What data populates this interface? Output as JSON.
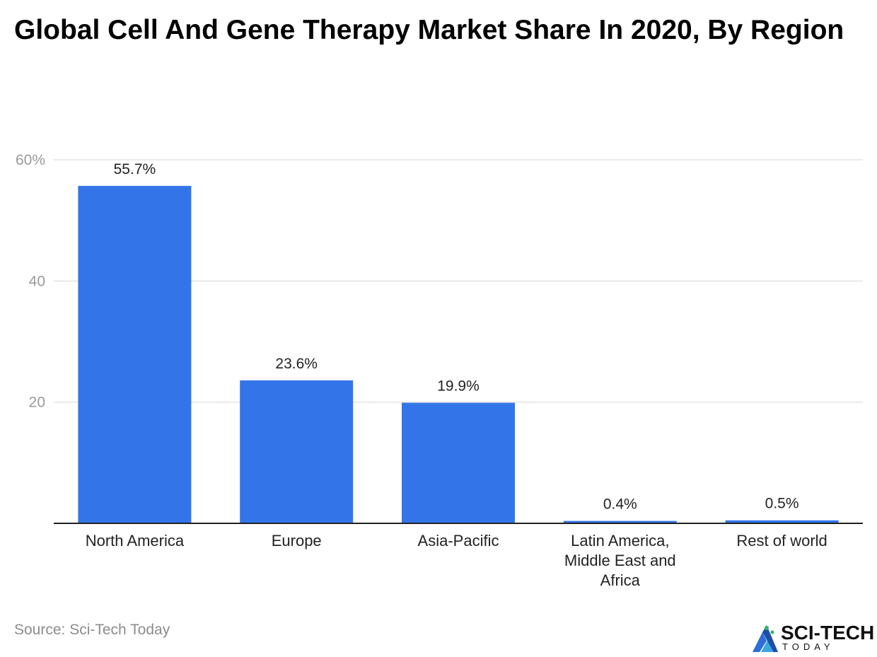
{
  "title": "Global Cell And Gene Therapy Market Share In 2020, By Region",
  "source": "Source: Sci-Tech Today",
  "logo": {
    "main": "SCI-TECH",
    "sub": "TODAY"
  },
  "colors": {
    "bar": "#3375e8",
    "grid": "#e3e3e3",
    "axis": "#222222"
  },
  "chart_data": {
    "type": "bar",
    "title": "Global Cell And Gene Therapy Market Share In 2020, By Region",
    "xlabel": "",
    "ylabel": "",
    "categories": [
      [
        "North America"
      ],
      [
        "Europe"
      ],
      [
        "Asia-Pacific"
      ],
      [
        "Latin America,",
        "Middle East and",
        "Africa"
      ],
      [
        "Rest of world"
      ]
    ],
    "values": [
      55.7,
      23.6,
      19.9,
      0.4,
      0.5
    ],
    "data_labels": [
      "55.7%",
      "23.6%",
      "19.9%",
      "0.4%",
      "0.5%"
    ],
    "yticks": [
      20,
      40,
      60
    ],
    "ytick_labels": [
      "20",
      "40",
      "60%"
    ],
    "ylim": [
      0,
      60
    ],
    "grid": true
  }
}
